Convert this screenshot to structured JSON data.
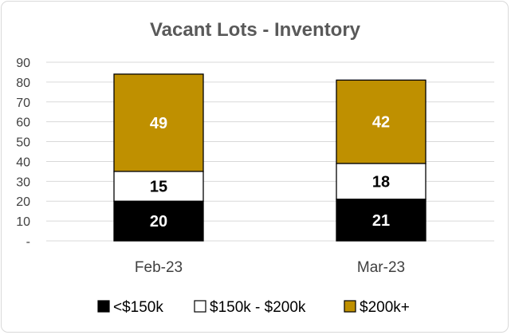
{
  "chart_data": {
    "type": "bar",
    "stacked": true,
    "title": "Vacant Lots - Inventory",
    "categories": [
      "Feb-23",
      "Mar-23"
    ],
    "series": [
      {
        "name": "<$150k",
        "values": [
          20,
          21
        ],
        "color": "#000000",
        "label_color": "#ffffff"
      },
      {
        "name": "$150k - $200k",
        "values": [
          15,
          18
        ],
        "color": "#ffffff",
        "label_color": "#000000"
      },
      {
        "name": "$200k+",
        "values": [
          49,
          42
        ],
        "color": "#bf9000",
        "label_color": "#ffffff"
      }
    ],
    "ylim": [
      0,
      90
    ],
    "yticks": [
      "-",
      "10",
      "20",
      "30",
      "40",
      "50",
      "60",
      "70",
      "80",
      "90"
    ],
    "grid": true,
    "legend_position": "bottom"
  }
}
